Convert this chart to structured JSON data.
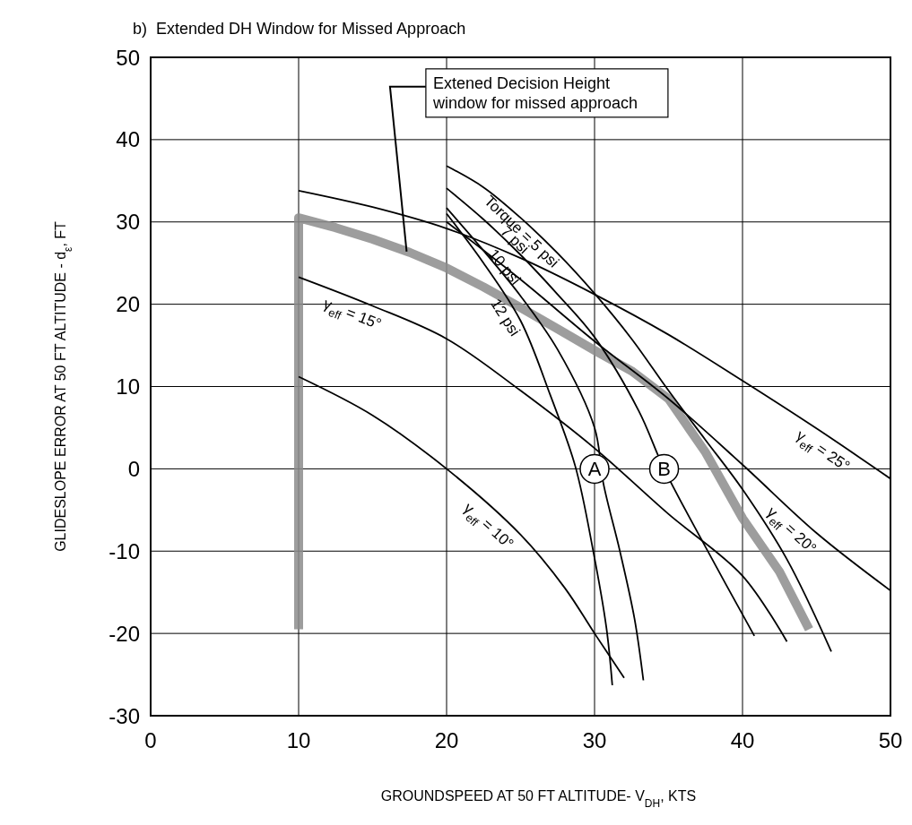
{
  "chart_data": {
    "type": "line",
    "title": "b)  Extended DH Window for Missed Approach",
    "xlabel": "GROUNDSPEED AT 50 FT ALTITUDE- V$_{DH}$, KTS",
    "ylabel": "GLIDESLOPE ERROR AT 50 FT ALTITUDE - d$_{ε}$, FT",
    "xlim": [
      0,
      50
    ],
    "ylim": [
      -30,
      50
    ],
    "xticks": [
      0,
      10,
      20,
      30,
      40,
      50
    ],
    "yticks": [
      -30,
      -20,
      -10,
      0,
      10,
      20,
      30,
      40,
      50
    ],
    "grid": true,
    "line_style": "solid",
    "marker": "none",
    "series": [
      {
        "color": "#8c8c8c",
        "x": [
          10,
          10,
          12.5,
          15,
          17.5,
          20,
          22.5,
          25,
          27.5,
          30,
          32.5,
          35,
          37.5,
          40,
          42.5,
          44.5
        ],
        "values": [
          -19.5,
          30.5,
          29.3,
          27.9,
          26.3,
          24.4,
          22.1,
          19.6,
          17.0,
          14.4,
          11.9,
          8.5,
          2,
          -6,
          -12.5,
          -19.5
        ]
      },
      {
        "name": "Torque = 5 psi",
        "color": "#000000",
        "x": [
          20,
          22.5,
          25,
          27.5,
          30,
          32.5,
          35,
          37.5,
          40,
          43,
          46
        ],
        "values": [
          36.8,
          34.2,
          30.5,
          26.2,
          21.3,
          15.8,
          9.5,
          3.5,
          -2.5,
          -11,
          -22.2
        ]
      },
      {
        "name": "7 psi",
        "color": "#000000",
        "x": [
          20,
          22.5,
          25,
          27.5,
          30,
          33,
          34.7,
          37.5,
          40.8
        ],
        "values": [
          34.1,
          30.3,
          26,
          21.2,
          16,
          7,
          0,
          -9.5,
          -20.3
        ]
      },
      {
        "name": "10 psi",
        "color": "#000000",
        "x": [
          20,
          22.5,
          25,
          27.5,
          30,
          30.6,
          31.7,
          32.7,
          33.3
        ],
        "values": [
          31.7,
          26.5,
          21,
          14.5,
          5,
          -1.8,
          -9.9,
          -18.2,
          -25.7
        ]
      },
      {
        "name": "12 psi",
        "color": "#000000",
        "x": [
          20,
          22.5,
          25,
          27,
          28.7,
          29.9,
          30.8,
          31.2
        ],
        "values": [
          31,
          25,
          18,
          9,
          0.3,
          -9.9,
          -19.3,
          -26.3
        ]
      },
      {
        "name": "γ$_{eff}$ = 10°",
        "color": "#000000",
        "x": [
          10,
          15,
          20,
          25,
          28,
          30,
          32
        ],
        "values": [
          11.2,
          6.5,
          0,
          -8,
          -14.5,
          -20,
          -25.4
        ]
      },
      {
        "name": "γ$_{eff}$ = 15°",
        "color": "#000000",
        "x": [
          10,
          15,
          20,
          25,
          30,
          35,
          40,
          43
        ],
        "values": [
          23.3,
          19.8,
          15.8,
          9.5,
          2.5,
          -5.5,
          -13,
          -21
        ]
      },
      {
        "name": "γ$_{eff}$ = 20°",
        "color": "#000000",
        "x": [
          20,
          25,
          30,
          35,
          40,
          45,
          50
        ],
        "values": [
          30,
          23,
          15.5,
          8.5,
          0.5,
          -7.8,
          -14.8
        ]
      },
      {
        "name": "γ$_{eff}$ = 25°",
        "color": "#000000",
        "x": [
          10,
          15,
          20,
          25,
          30,
          35,
          40,
          45,
          50
        ],
        "values": [
          33.8,
          31.8,
          29.2,
          25.6,
          21.2,
          16.3,
          10.7,
          4.9,
          -1.2
        ]
      }
    ],
    "annotations": [
      {
        "text": "Extened Decision Height window for missed approach",
        "x": 17.3,
        "y": 26.4
      },
      {
        "text": "A",
        "x": 30,
        "y": 0
      },
      {
        "text": "B",
        "x": 34.7,
        "y": 0
      }
    ]
  }
}
